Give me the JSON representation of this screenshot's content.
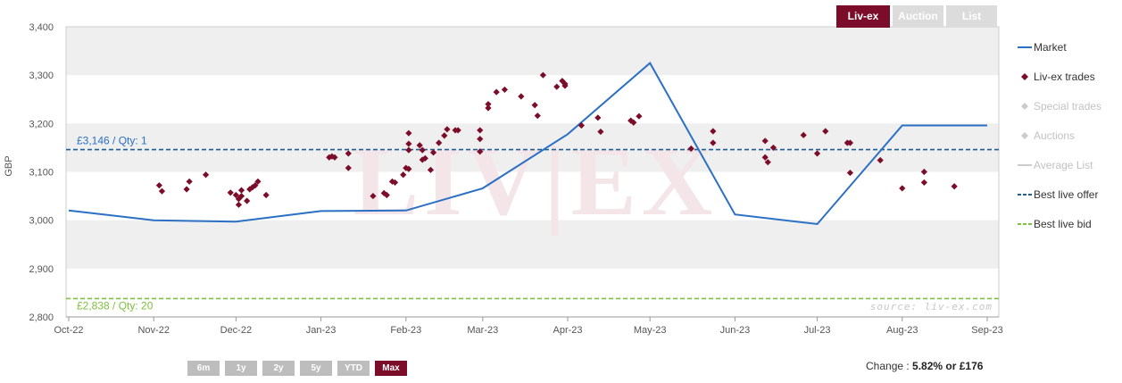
{
  "tabs": [
    {
      "label": "Liv-ex",
      "active": true
    },
    {
      "label": "Auction",
      "active": false
    },
    {
      "label": "List",
      "active": false
    }
  ],
  "range_buttons": [
    {
      "label": "6m",
      "active": false
    },
    {
      "label": "1y",
      "active": false
    },
    {
      "label": "2y",
      "active": false
    },
    {
      "label": "5y",
      "active": false
    },
    {
      "label": "YTD",
      "active": false
    },
    {
      "label": "Max",
      "active": true
    }
  ],
  "change": {
    "label": "Change :",
    "value": "5.82% or £176"
  },
  "watermark": "LIV|EX",
  "source": "source: liv-ex.com",
  "chart_data": {
    "type": "line",
    "ylabel": "GBP",
    "ylim": [
      2800,
      3400
    ],
    "yticks": [
      2800,
      2900,
      3000,
      3100,
      3200,
      3300,
      3400
    ],
    "ytick_labels": [
      "2,800",
      "2,900",
      "3,000",
      "3,100",
      "3,200",
      "3,300",
      "3,400"
    ],
    "xticks": [
      "2022-10-01",
      "2022-11-01",
      "2022-12-01",
      "2023-01-01",
      "2023-02-01",
      "2023-03-01",
      "2023-04-01",
      "2023-05-01",
      "2023-06-01",
      "2023-07-01",
      "2023-08-01",
      "2023-09-01"
    ],
    "xtick_labels": [
      "Oct-22",
      "Nov-22",
      "Dec-22",
      "Jan-23",
      "Feb-23",
      "Mar-23",
      "Apr-23",
      "May-23",
      "Jun-23",
      "Jul-23",
      "Aug-23",
      "Sep-23"
    ],
    "series": [
      {
        "name": "Market",
        "type": "line",
        "color": "#2b70c4",
        "points": [
          [
            "2022-10-01",
            3020
          ],
          [
            "2022-11-01",
            3000
          ],
          [
            "2022-12-01",
            2997
          ],
          [
            "2023-01-01",
            3019
          ],
          [
            "2023-02-01",
            3020
          ],
          [
            "2023-03-01",
            3066
          ],
          [
            "2023-04-01",
            3178
          ],
          [
            "2023-05-01",
            3325
          ],
          [
            "2023-06-01",
            3012
          ],
          [
            "2023-07-01",
            2992
          ],
          [
            "2023-08-01",
            3196
          ],
          [
            "2023-09-01",
            3196
          ]
        ]
      },
      {
        "name": "Liv-ex trades",
        "type": "scatter",
        "color": "#7b0d2a",
        "points": [
          [
            "2022-11-03",
            3072
          ],
          [
            "2022-11-04",
            3060
          ],
          [
            "2022-11-13",
            3064
          ],
          [
            "2022-11-14",
            3080
          ],
          [
            "2022-11-20",
            3094
          ],
          [
            "2022-11-29",
            3057
          ],
          [
            "2022-12-01",
            3052
          ],
          [
            "2022-12-02",
            3044
          ],
          [
            "2022-12-02",
            3032
          ],
          [
            "2022-12-03",
            3062
          ],
          [
            "2022-12-03",
            3050
          ],
          [
            "2022-12-05",
            3040
          ],
          [
            "2022-12-06",
            3064
          ],
          [
            "2022-12-07",
            3068
          ],
          [
            "2022-12-08",
            3072
          ],
          [
            "2022-12-09",
            3080
          ],
          [
            "2022-12-12",
            3052
          ],
          [
            "2023-01-04",
            3130
          ],
          [
            "2023-01-05",
            3132
          ],
          [
            "2023-01-06",
            3130
          ],
          [
            "2023-01-11",
            3138
          ],
          [
            "2023-01-11",
            3108
          ],
          [
            "2023-01-20",
            3050
          ],
          [
            "2023-01-24",
            3056
          ],
          [
            "2023-01-25",
            3052
          ],
          [
            "2023-01-27",
            3080
          ],
          [
            "2023-01-28",
            3078
          ],
          [
            "2023-01-31",
            3094
          ],
          [
            "2023-02-01",
            3108
          ],
          [
            "2023-02-02",
            3106
          ],
          [
            "2023-02-02",
            3180
          ],
          [
            "2023-02-02",
            3158
          ],
          [
            "2023-02-02",
            3145
          ],
          [
            "2023-02-06",
            3155
          ],
          [
            "2023-02-07",
            3145
          ],
          [
            "2023-02-07",
            3125
          ],
          [
            "2023-02-08",
            3128
          ],
          [
            "2023-02-10",
            3104
          ],
          [
            "2023-02-11",
            3140
          ],
          [
            "2023-02-13",
            3160
          ],
          [
            "2023-02-15",
            3175
          ],
          [
            "2023-02-16",
            3188
          ],
          [
            "2023-02-19",
            3186
          ],
          [
            "2023-02-20",
            3186
          ],
          [
            "2023-02-28",
            3186
          ],
          [
            "2023-02-28",
            3168
          ],
          [
            "2023-02-28",
            3142
          ],
          [
            "2023-03-03",
            3232
          ],
          [
            "2023-03-03",
            3240
          ],
          [
            "2023-03-06",
            3265
          ],
          [
            "2023-03-09",
            3270
          ],
          [
            "2023-03-15",
            3256
          ],
          [
            "2023-03-20",
            3238
          ],
          [
            "2023-03-21",
            3216
          ],
          [
            "2023-03-23",
            3300
          ],
          [
            "2023-03-28",
            3276
          ],
          [
            "2023-03-30",
            3288
          ],
          [
            "2023-03-31",
            3282
          ],
          [
            "2023-03-31",
            3278
          ],
          [
            "2023-04-06",
            3196
          ],
          [
            "2023-04-12",
            3212
          ],
          [
            "2023-04-13",
            3183
          ],
          [
            "2023-04-24",
            3206
          ],
          [
            "2023-04-25",
            3202
          ],
          [
            "2023-04-27",
            3215
          ],
          [
            "2023-05-16",
            3148
          ],
          [
            "2023-05-24",
            3184
          ],
          [
            "2023-05-24",
            3160
          ],
          [
            "2023-06-12",
            3164
          ],
          [
            "2023-06-12",
            3130
          ],
          [
            "2023-06-13",
            3120
          ],
          [
            "2023-06-15",
            3150
          ],
          [
            "2023-06-26",
            3176
          ],
          [
            "2023-07-01",
            3138
          ],
          [
            "2023-07-04",
            3184
          ],
          [
            "2023-07-12",
            3160
          ],
          [
            "2023-07-13",
            3160
          ],
          [
            "2023-07-13",
            3098
          ],
          [
            "2023-07-24",
            3124
          ],
          [
            "2023-08-01",
            3066
          ],
          [
            "2023-08-09",
            3100
          ],
          [
            "2023-08-09",
            3078
          ],
          [
            "2023-08-20",
            3070
          ]
        ]
      }
    ],
    "best_live_offer": {
      "label": "£3,146 / Qty: 1",
      "value": 3146,
      "color": "#1f5f93"
    },
    "best_live_bid": {
      "label": "£2,838 / Qty: 20",
      "value": 2838,
      "color": "#7fc040"
    },
    "legend": [
      {
        "label": "Market",
        "symbol": "line",
        "color": "#2b70c4",
        "active": true
      },
      {
        "label": "Liv-ex trades",
        "symbol": "diamond",
        "color": "#7b0d2a",
        "active": true
      },
      {
        "label": "Special trades",
        "symbol": "diamond",
        "color": "#cccccc",
        "active": false
      },
      {
        "label": "Auctions",
        "symbol": "diamond",
        "color": "#cccccc",
        "active": false
      },
      {
        "label": "Average List",
        "symbol": "line",
        "color": "#cccccc",
        "active": false
      },
      {
        "label": "Best live offer",
        "symbol": "dash",
        "color": "#1f5f93",
        "active": true
      },
      {
        "label": "Best live bid",
        "symbol": "dash",
        "color": "#7fc040",
        "active": true
      }
    ],
    "legend_position": "right",
    "grid": true
  }
}
